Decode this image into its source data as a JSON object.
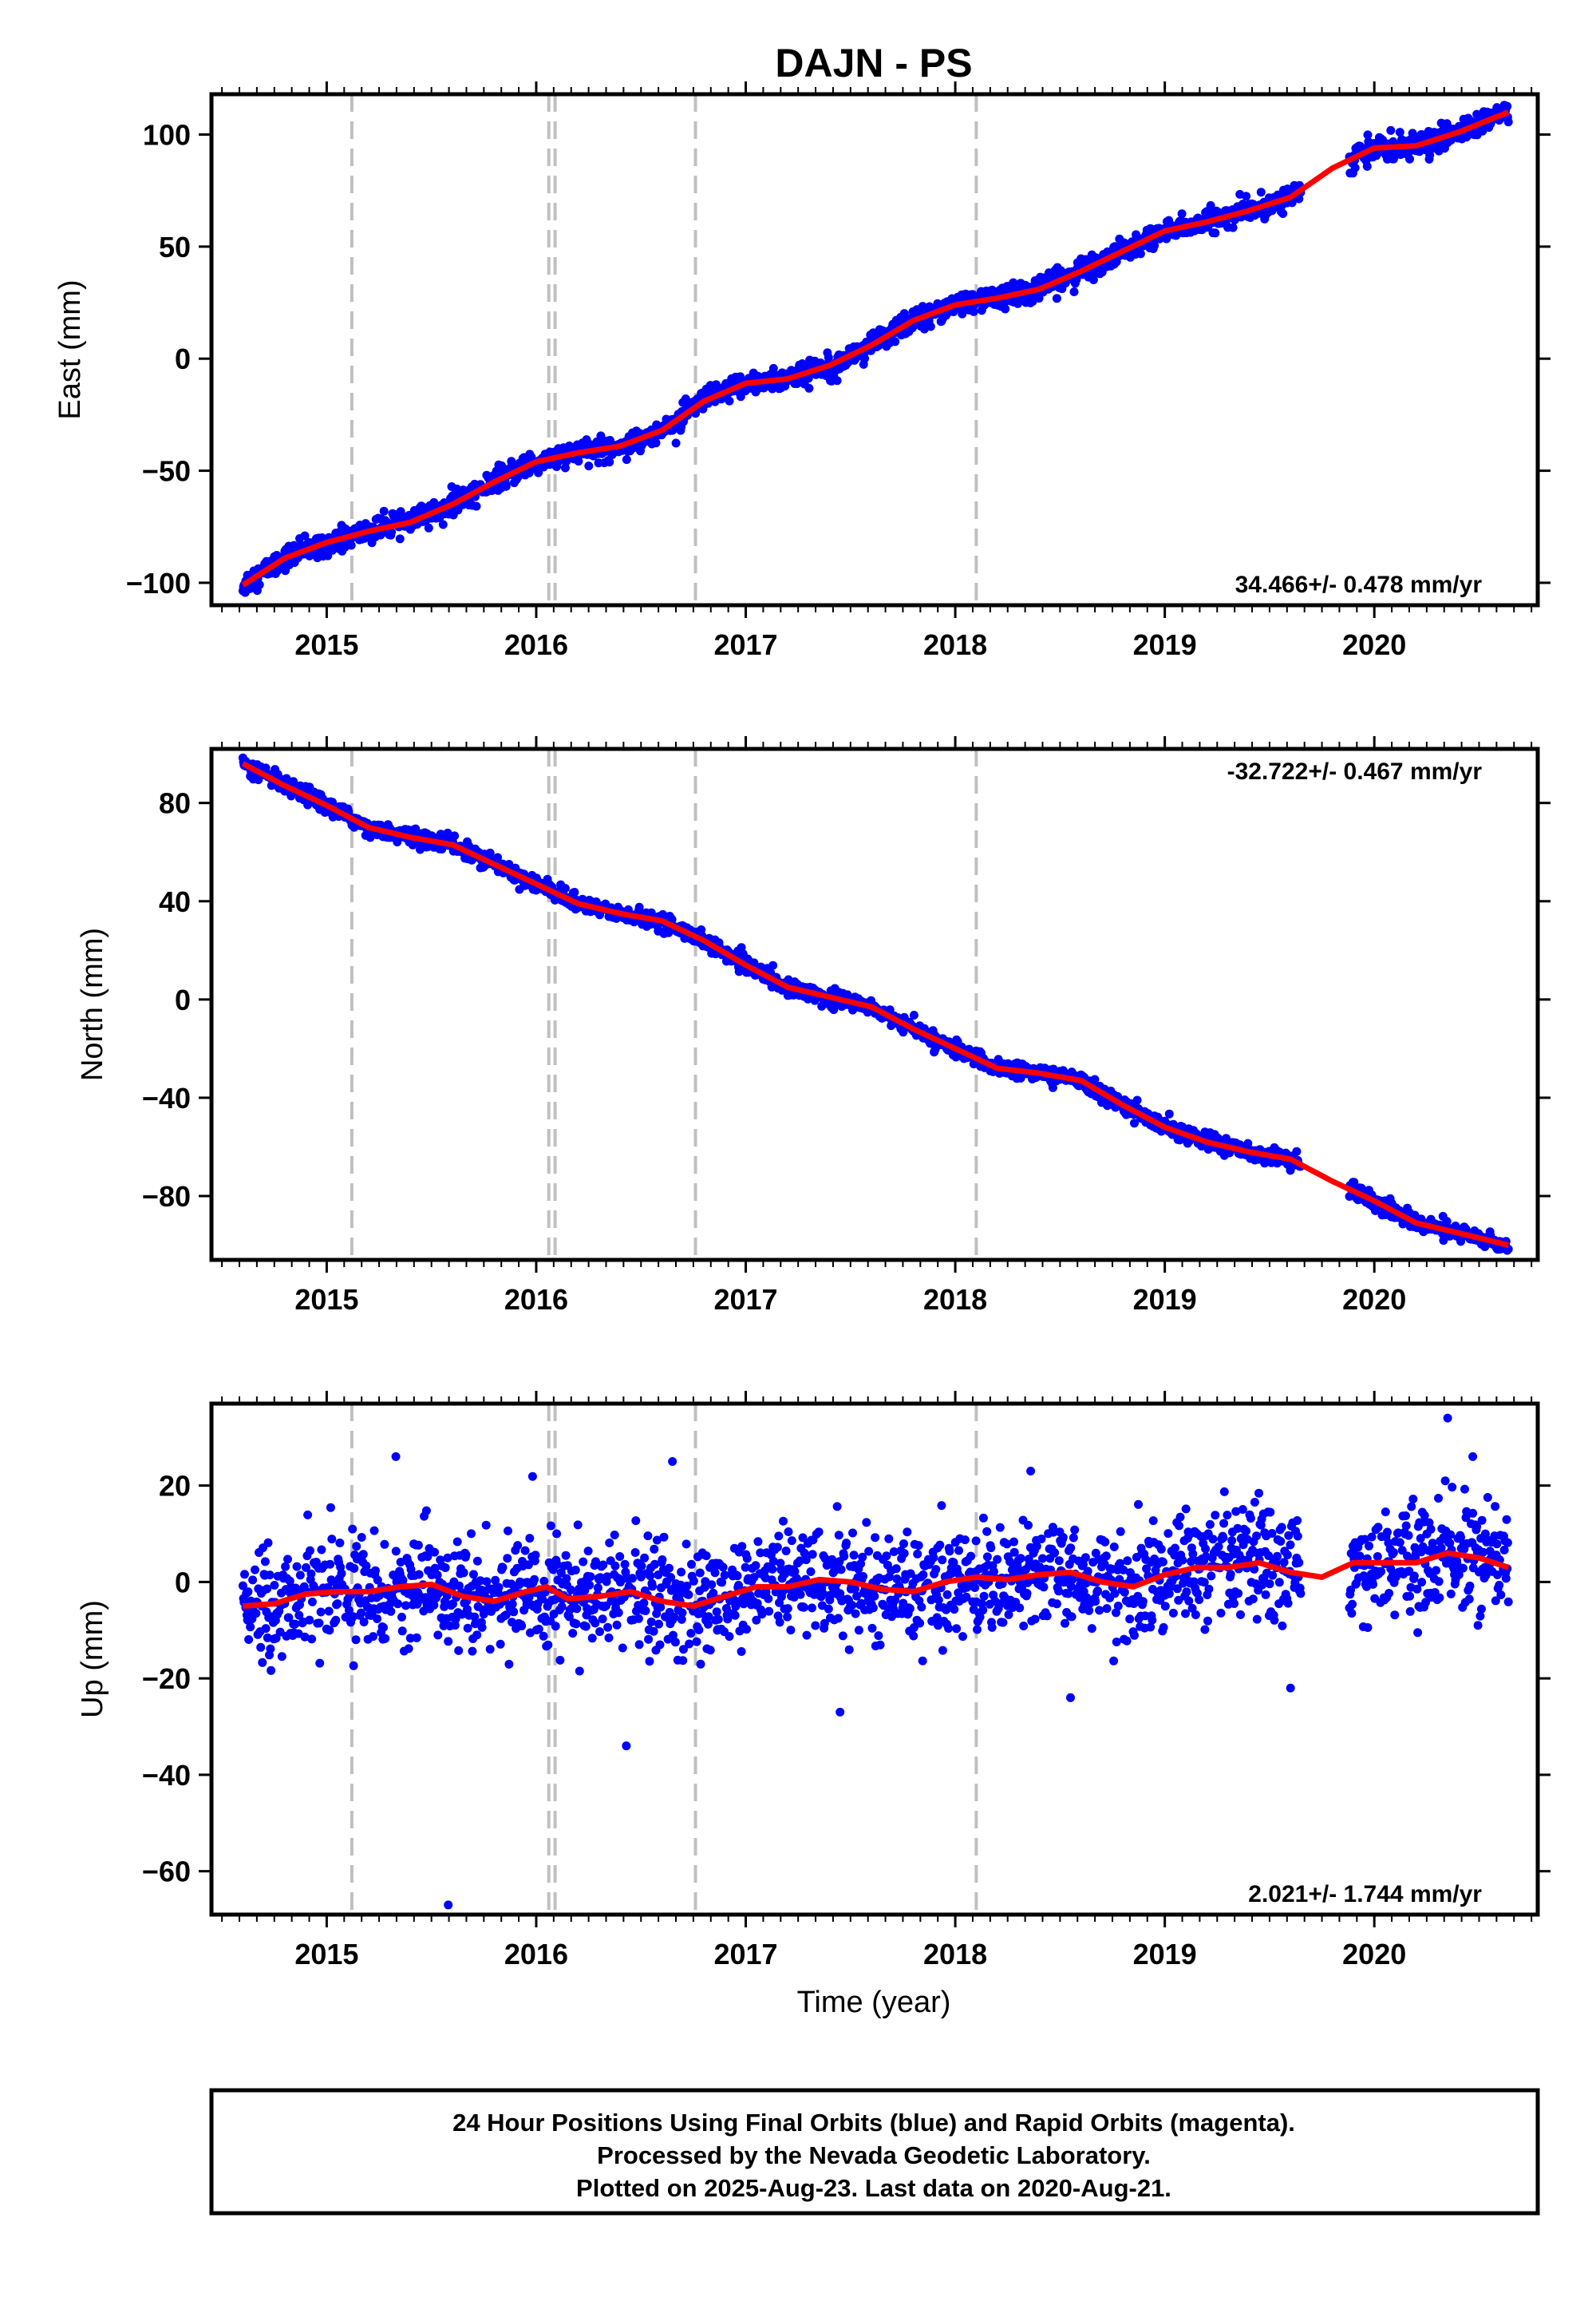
{
  "title": "DAJN - PS",
  "xlabel": "Time (year)",
  "footer": {
    "line1": "24 Hour Positions Using Final Orbits (blue) and Rapid Orbits (magenta).",
    "line2": "Processed by the Nevada Geodetic Laboratory.",
    "line3": "Plotted on 2025-Aug-23. Last data on 2020-Aug-21."
  },
  "colors": {
    "points": "#0000ff",
    "fit": "#ff0000",
    "steps": "#c0c0c0",
    "frame": "#000000"
  },
  "chart_data": [
    {
      "type": "scatter",
      "ylabel": "East (mm)",
      "rate": "34.466+/- 0.478 mm/yr",
      "xlim": [
        2014.45,
        2020.78
      ],
      "ylim": [
        -110,
        118
      ],
      "xticks": [
        2015,
        2016,
        2017,
        2018,
        2019,
        2020
      ],
      "yticks": [
        -100,
        -50,
        0,
        50,
        100
      ],
      "yticklabels": [
        "−100",
        "−50",
        "0",
        "50",
        "100"
      ],
      "step_lines": [
        2015.12,
        2016.06,
        2016.09,
        2016.76,
        2018.1
      ],
      "data_range": [
        2014.6,
        2020.64
      ],
      "gaps": [
        [
          2019.65,
          2019.88
        ]
      ],
      "fit": {
        "x": [
          2014.6,
          2014.8,
          2015.0,
          2015.2,
          2015.4,
          2015.6,
          2015.8,
          2016.0,
          2016.2,
          2016.4,
          2016.6,
          2016.8,
          2017.0,
          2017.2,
          2017.4,
          2017.6,
          2017.8,
          2018.0,
          2018.2,
          2018.4,
          2018.6,
          2018.8,
          2019.0,
          2019.2,
          2019.4,
          2019.6,
          2019.8,
          2020.0,
          2020.2,
          2020.4,
          2020.64
        ],
        "y": [
          -101,
          -89,
          -82,
          -77,
          -73,
          -65,
          -55,
          -46,
          -42,
          -39,
          -32,
          -19,
          -11,
          -9,
          -3,
          6,
          17,
          24,
          27,
          31,
          39,
          48,
          57,
          61,
          66,
          72,
          85,
          94,
          95,
          101,
          110
        ]
      },
      "scatter_sd": 2.5
    },
    {
      "type": "scatter",
      "ylabel": "North (mm)",
      "rate": "-32.722+/- 0.467 mm/yr",
      "xlim": [
        2014.45,
        2020.78
      ],
      "ylim": [
        -106,
        102
      ],
      "xticks": [
        2015,
        2016,
        2017,
        2018,
        2019,
        2020
      ],
      "yticks": [
        -80,
        -40,
        0,
        40,
        80
      ],
      "yticklabels": [
        "−80",
        "−40",
        "0",
        "40",
        "80"
      ],
      "step_lines": [
        2015.12,
        2016.06,
        2016.09,
        2016.76,
        2018.1
      ],
      "data_range": [
        2014.6,
        2020.64
      ],
      "gaps": [
        [
          2019.65,
          2019.88
        ]
      ],
      "fit": {
        "x": [
          2014.6,
          2014.8,
          2015.0,
          2015.2,
          2015.4,
          2015.6,
          2015.8,
          2016.0,
          2016.2,
          2016.4,
          2016.6,
          2016.8,
          2017.0,
          2017.2,
          2017.4,
          2017.6,
          2017.8,
          2018.0,
          2018.2,
          2018.4,
          2018.6,
          2018.8,
          2019.0,
          2019.2,
          2019.4,
          2019.6,
          2019.8,
          2020.0,
          2020.2,
          2020.4,
          2020.64
        ],
        "y": [
          96,
          87,
          79,
          70,
          66,
          63,
          55,
          47,
          39,
          35,
          32,
          24,
          14,
          5,
          1,
          -3,
          -12,
          -20,
          -28,
          -30,
          -33,
          -43,
          -52,
          -58,
          -62,
          -65,
          -74,
          -82,
          -91,
          -95,
          -100
        ]
      },
      "scatter_sd": 1.6
    },
    {
      "type": "scatter",
      "ylabel": "Up (mm)",
      "rate": "2.021+/- 1.744 mm/yr",
      "xlim": [
        2014.45,
        2020.78
      ],
      "ylim": [
        -69,
        37
      ],
      "xticks": [
        2015,
        2016,
        2017,
        2018,
        2019,
        2020
      ],
      "yticks": [
        -60,
        -40,
        -20,
        0,
        20
      ],
      "yticklabels": [
        "−60",
        "−40",
        "−20",
        "0",
        "20"
      ],
      "step_lines": [
        2015.12,
        2016.06,
        2016.09,
        2016.76,
        2018.1
      ],
      "data_range": [
        2014.6,
        2020.64
      ],
      "gaps": [
        [
          2019.65,
          2019.88
        ]
      ],
      "fit": {
        "x": [
          2014.6,
          2014.75,
          2014.9,
          2015.05,
          2015.2,
          2015.35,
          2015.5,
          2015.65,
          2015.8,
          2015.95,
          2016.05,
          2016.15,
          2016.3,
          2016.45,
          2016.6,
          2016.75,
          2016.9,
          2017.05,
          2017.2,
          2017.35,
          2017.5,
          2017.65,
          2017.8,
          2017.95,
          2018.1,
          2018.25,
          2018.4,
          2018.55,
          2018.7,
          2018.85,
          2019.0,
          2019.15,
          2019.3,
          2019.45,
          2019.6,
          2019.75,
          2019.9,
          2020.05,
          2020.2,
          2020.35,
          2020.5,
          2020.64
        ],
        "y": [
          -5,
          -4.5,
          -2.5,
          -2,
          -2,
          -1,
          -0.5,
          -3,
          -4,
          -2,
          -1,
          -3.5,
          -3,
          -2,
          -4,
          -5,
          -3,
          -1,
          -1,
          0.5,
          0,
          -1.5,
          -2,
          0,
          1,
          0.5,
          1.5,
          2,
          0,
          -1,
          1.5,
          3,
          3,
          4,
          2,
          1,
          4,
          4,
          4,
          6,
          5,
          3
        ]
      },
      "scatter_sd": 5.5,
      "outliers": [
        {
          "x": 2015.58,
          "y": -67
        },
        {
          "x": 2016.43,
          "y": -34
        },
        {
          "x": 2015.33,
          "y": 26
        },
        {
          "x": 2016.65,
          "y": 25
        },
        {
          "x": 2018.36,
          "y": 23
        },
        {
          "x": 2020.35,
          "y": 34
        },
        {
          "x": 2020.47,
          "y": 26
        },
        {
          "x": 2019.6,
          "y": -22
        },
        {
          "x": 2017.45,
          "y": -27
        },
        {
          "x": 2018.55,
          "y": -24
        }
      ]
    }
  ]
}
